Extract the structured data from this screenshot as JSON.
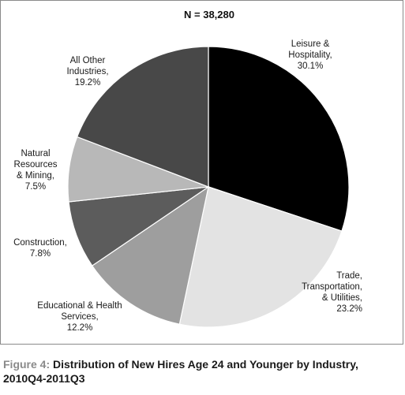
{
  "chart_data": {
    "type": "pie",
    "title": "N = 38,280",
    "slices": [
      {
        "label_lines": [
          "Leisure &",
          "Hospitality,",
          "30.1%"
        ],
        "category": "Leisure & Hospitality",
        "value": 30.1,
        "color": "#000000"
      },
      {
        "label_lines": [
          "Trade,",
          "Transportation,",
          "& Utilities,",
          "23.2%"
        ],
        "category": "Trade, Transportation, & Utilities",
        "value": 23.2,
        "color": "#e3e3e3"
      },
      {
        "label_lines": [
          "Educational & Health",
          "Services,",
          "12.2%"
        ],
        "category": "Educational & Health Services",
        "value": 12.2,
        "color": "#9e9e9e"
      },
      {
        "label_lines": [
          "Construction,",
          "7.8%"
        ],
        "category": "Construction",
        "value": 7.8,
        "color": "#5c5c5c"
      },
      {
        "label_lines": [
          "Natural",
          "Resources",
          "& Mining,",
          "7.5%"
        ],
        "category": "Natural Resources & Mining",
        "value": 7.5,
        "color": "#b8b8b8"
      },
      {
        "label_lines": [
          "All Other",
          "Industries,",
          "19.2%"
        ],
        "category": "All Other Industries",
        "value": 19.2,
        "color": "#484848"
      }
    ],
    "start": "12 o'clock",
    "direction": "clockwise"
  },
  "caption": {
    "figure_number": "Figure 4:",
    "text": "Distribution of New Hires Age 24 and Younger by Industry,",
    "text_line2": "2010Q4-2011Q3"
  }
}
